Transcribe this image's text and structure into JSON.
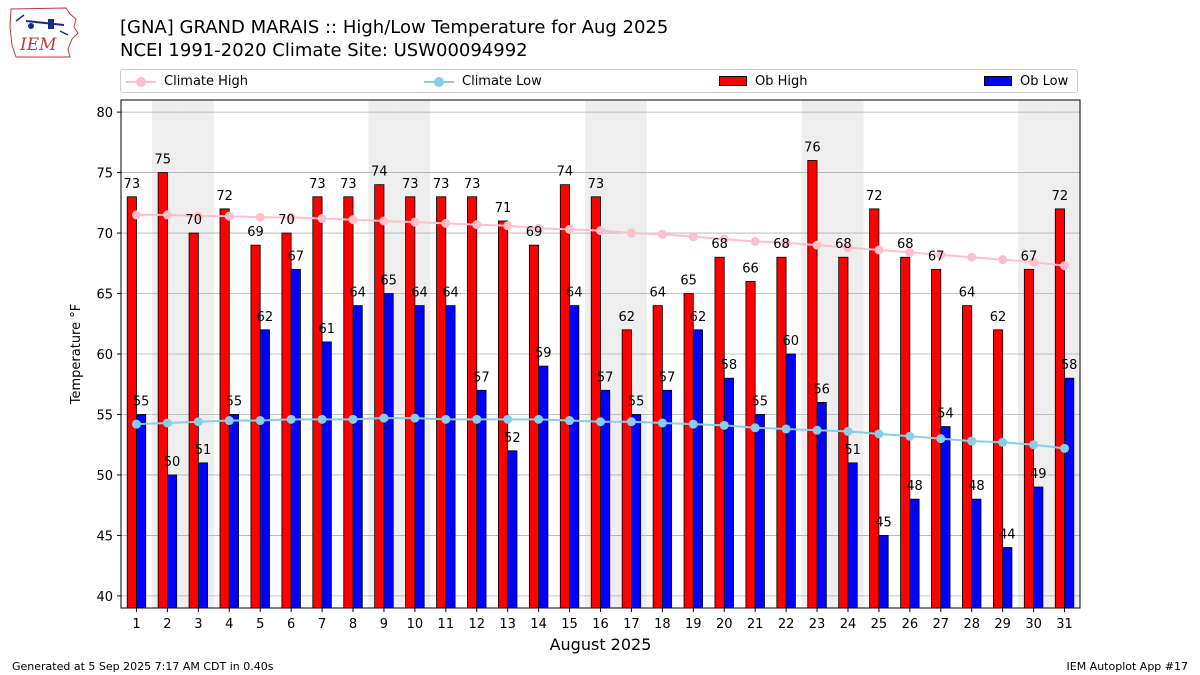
{
  "header": {
    "title_line1": "[GNA] GRAND MARAIS :: High/Low Temperature for Aug 2025",
    "title_line2": "NCEI 1991-2020 Climate Site: USW00094992"
  },
  "logo": {
    "text": "IEM"
  },
  "footer": {
    "left": "Generated at 5 Sep 2025 7:17 AM CDT in 0.40s",
    "right": "IEM Autoplot App #17"
  },
  "colors": {
    "ob_high": "#ff0000",
    "ob_low": "#0000ff",
    "climate_high": "#ffc0cb",
    "climate_low": "#87ceeb",
    "weekend_shade": "#eeeeee",
    "grid": "#b0b0b0"
  },
  "chart_data": {
    "type": "bar",
    "title": "[GNA] GRAND MARAIS :: High/Low Temperature for Aug 2025",
    "xlabel": "August 2025",
    "ylabel": "Temperature °F",
    "ylim": [
      39,
      81
    ],
    "yticks": [
      40,
      45,
      50,
      55,
      60,
      65,
      70,
      75,
      80
    ],
    "grid": true,
    "legend_position": "top",
    "weekend_days": [
      2,
      3,
      9,
      10,
      16,
      17,
      23,
      24,
      30,
      31
    ],
    "categories": [
      "1",
      "2",
      "3",
      "4",
      "5",
      "6",
      "7",
      "8",
      "9",
      "10",
      "11",
      "12",
      "13",
      "14",
      "15",
      "16",
      "17",
      "18",
      "19",
      "20",
      "21",
      "22",
      "23",
      "24",
      "25",
      "26",
      "27",
      "28",
      "29",
      "30",
      "31"
    ],
    "series": [
      {
        "name": "Ob High",
        "kind": "bar",
        "values": [
          73,
          75,
          70,
          72,
          69,
          70,
          73,
          73,
          74,
          73,
          73,
          73,
          71,
          69,
          74,
          73,
          62,
          64,
          65,
          68,
          66,
          68,
          76,
          68,
          72,
          68,
          67,
          64,
          62,
          67,
          72
        ]
      },
      {
        "name": "Ob Low",
        "kind": "bar",
        "values": [
          55,
          50,
          51,
          55,
          62,
          67,
          61,
          64,
          65,
          64,
          64,
          57,
          52,
          59,
          64,
          57,
          55,
          57,
          62,
          58,
          55,
          60,
          56,
          51,
          45,
          48,
          54,
          48,
          44,
          49,
          58
        ]
      },
      {
        "name": "Climate High",
        "kind": "line",
        "values": [
          71.5,
          71.5,
          71.4,
          71.4,
          71.3,
          71.3,
          71.2,
          71.1,
          71.0,
          70.9,
          70.8,
          70.7,
          70.6,
          70.4,
          70.3,
          70.2,
          70.0,
          69.9,
          69.7,
          69.5,
          69.3,
          69.2,
          69.0,
          68.8,
          68.6,
          68.4,
          68.2,
          68.0,
          67.8,
          67.6,
          67.3
        ]
      },
      {
        "name": "Climate Low",
        "kind": "line",
        "values": [
          54.2,
          54.3,
          54.4,
          54.5,
          54.5,
          54.6,
          54.6,
          54.6,
          54.7,
          54.7,
          54.6,
          54.6,
          54.6,
          54.6,
          54.5,
          54.4,
          54.4,
          54.3,
          54.2,
          54.1,
          53.9,
          53.8,
          53.7,
          53.6,
          53.4,
          53.2,
          53.0,
          52.8,
          52.7,
          52.5,
          52.2
        ]
      }
    ]
  }
}
